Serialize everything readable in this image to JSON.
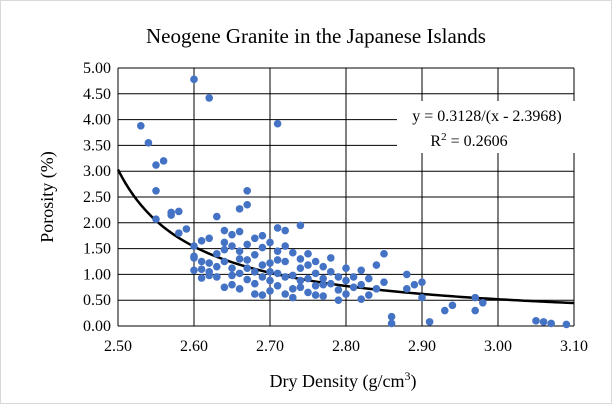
{
  "chart_data": {
    "type": "scatter",
    "title": "Neogene Granite in the Japanese Islands",
    "xlabel": "Dry Density (g/cm",
    "xlabel_sup": "3",
    "xlabel_end": ")",
    "ylabel": "Porosity (%)",
    "xlim": [
      2.5,
      3.1
    ],
    "ylim": [
      0.0,
      5.0
    ],
    "x_ticks": [
      "2.50",
      "2.60",
      "2.70",
      "2.80",
      "2.90",
      "3.00",
      "3.10"
    ],
    "y_ticks": [
      "0.00",
      "0.50",
      "1.00",
      "1.50",
      "2.00",
      "2.50",
      "3.00",
      "3.50",
      "4.00",
      "4.50",
      "5.00"
    ],
    "grid": true,
    "legend": "none",
    "marker_color": "#4472c4",
    "curve_color": "#000000",
    "fit": {
      "a": 0.3128,
      "b": 2.3968,
      "x_range": [
        2.5,
        3.1
      ],
      "equation": "y = 0.3128/(x - 2.3968)",
      "r2_prefix": "R",
      "r2_sup": "2",
      "r2_suffix": " = 0.2606"
    },
    "points": [
      [
        2.53,
        3.88
      ],
      [
        2.54,
        3.55
      ],
      [
        2.55,
        3.12
      ],
      [
        2.56,
        3.2
      ],
      [
        2.55,
        2.62
      ],
      [
        2.57,
        2.2
      ],
      [
        2.58,
        2.22
      ],
      [
        2.55,
        2.07
      ],
      [
        2.57,
        2.15
      ],
      [
        2.58,
        1.8
      ],
      [
        2.59,
        1.88
      ],
      [
        2.6,
        4.78
      ],
      [
        2.62,
        4.42
      ],
      [
        2.71,
        3.92
      ],
      [
        2.67,
        2.62
      ],
      [
        2.67,
        2.35
      ],
      [
        2.66,
        2.27
      ],
      [
        2.63,
        2.12
      ],
      [
        2.64,
        1.85
      ],
      [
        2.65,
        1.77
      ],
      [
        2.66,
        1.83
      ],
      [
        2.61,
        1.65
      ],
      [
        2.62,
        1.7
      ],
      [
        2.6,
        1.55
      ],
      [
        2.6,
        1.32
      ],
      [
        2.61,
        1.25
      ],
      [
        2.61,
        1.1
      ],
      [
        2.62,
        0.98
      ],
      [
        2.61,
        0.93
      ],
      [
        2.62,
        1.22
      ],
      [
        2.63,
        1.4
      ],
      [
        2.63,
        1.15
      ],
      [
        2.64,
        1.25
      ],
      [
        2.64,
        1.48
      ],
      [
        2.64,
        1.62
      ],
      [
        2.65,
        1.12
      ],
      [
        2.65,
        0.98
      ],
      [
        2.65,
        0.8
      ],
      [
        2.66,
        0.72
      ],
      [
        2.66,
        1.02
      ],
      [
        2.66,
        1.45
      ],
      [
        2.67,
        1.58
      ],
      [
        2.67,
        1.28
      ],
      [
        2.67,
        1.12
      ],
      [
        2.67,
        0.9
      ],
      [
        2.68,
        1.38
      ],
      [
        2.68,
        1.05
      ],
      [
        2.68,
        0.82
      ],
      [
        2.68,
        0.62
      ],
      [
        2.69,
        0.95
      ],
      [
        2.69,
        1.18
      ],
      [
        2.69,
        1.52
      ],
      [
        2.69,
        1.75
      ],
      [
        2.7,
        1.62
      ],
      [
        2.7,
        1.22
      ],
      [
        2.7,
        0.88
      ],
      [
        2.7,
        0.68
      ],
      [
        2.71,
        1.9
      ],
      [
        2.71,
        1.45
      ],
      [
        2.71,
        1.02
      ],
      [
        2.71,
        0.78
      ],
      [
        2.72,
        1.85
      ],
      [
        2.72,
        1.55
      ],
      [
        2.72,
        1.25
      ],
      [
        2.73,
        0.98
      ],
      [
        2.73,
        0.72
      ],
      [
        2.73,
        0.55
      ],
      [
        2.74,
        1.95
      ],
      [
        2.74,
        1.3
      ],
      [
        2.74,
        1.12
      ],
      [
        2.74,
        0.88
      ],
      [
        2.75,
        1.4
      ],
      [
        2.75,
        1.18
      ],
      [
        2.75,
        0.92
      ],
      [
        2.75,
        0.65
      ],
      [
        2.76,
        1.25
      ],
      [
        2.76,
        1.02
      ],
      [
        2.76,
        0.78
      ],
      [
        2.77,
        1.15
      ],
      [
        2.77,
        0.92
      ],
      [
        2.77,
        0.58
      ],
      [
        2.78,
        1.32
      ],
      [
        2.78,
        1.05
      ],
      [
        2.78,
        0.82
      ],
      [
        2.79,
        0.95
      ],
      [
        2.79,
        0.7
      ],
      [
        2.8,
        1.12
      ],
      [
        2.8,
        0.88
      ],
      [
        2.8,
        0.62
      ],
      [
        2.81,
        0.75
      ],
      [
        2.82,
        1.08
      ],
      [
        2.82,
        0.8
      ],
      [
        2.82,
        0.52
      ],
      [
        2.83,
        0.92
      ],
      [
        2.84,
        1.18
      ],
      [
        2.84,
        0.72
      ],
      [
        2.85,
        1.4
      ],
      [
        2.85,
        0.85
      ],
      [
        2.86,
        0.18
      ],
      [
        2.86,
        0.05
      ],
      [
        2.88,
        1.0
      ],
      [
        2.88,
        0.72
      ],
      [
        2.89,
        0.8
      ],
      [
        2.9,
        0.85
      ],
      [
        2.9,
        0.55
      ],
      [
        2.91,
        0.08
      ],
      [
        2.93,
        0.3
      ],
      [
        2.94,
        0.4
      ],
      [
        2.97,
        0.3
      ],
      [
        2.97,
        0.55
      ],
      [
        2.98,
        0.45
      ],
      [
        3.05,
        0.1
      ],
      [
        3.06,
        0.08
      ],
      [
        3.07,
        0.05
      ],
      [
        3.09,
        0.03
      ],
      [
        2.6,
        1.35
      ],
      [
        2.63,
        0.95
      ],
      [
        2.66,
        1.3
      ],
      [
        2.69,
        0.6
      ],
      [
        2.72,
        0.95
      ],
      [
        2.76,
        0.6
      ],
      [
        2.79,
        0.5
      ],
      [
        2.81,
        0.95
      ],
      [
        2.65,
        1.55
      ],
      [
        2.62,
        1.05
      ],
      [
        2.7,
        1.05
      ],
      [
        2.73,
        1.42
      ],
      [
        2.77,
        0.8
      ],
      [
        2.83,
        0.6
      ],
      [
        2.68,
        1.7
      ],
      [
        2.72,
        0.62
      ],
      [
        2.74,
        0.75
      ],
      [
        2.64,
        0.75
      ],
      [
        2.71,
        1.28
      ],
      [
        2.6,
        1.08
      ]
    ]
  }
}
